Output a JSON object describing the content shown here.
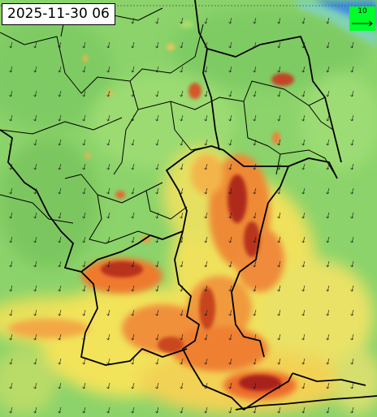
{
  "timestamp": "2025-11-30 06",
  "legend": {
    "reference_speed_label": "10",
    "swatch_color": "#00ff2a"
  },
  "colors": {
    "low": "#8bd36a",
    "mid": "#f2e35a",
    "high": "#ef7a2e",
    "peak": "#a8201a",
    "water": "#3f8fd8",
    "border": "#000000"
  },
  "map": {
    "layer": "wind-speed",
    "vector_glyph": "arrow-icon"
  }
}
